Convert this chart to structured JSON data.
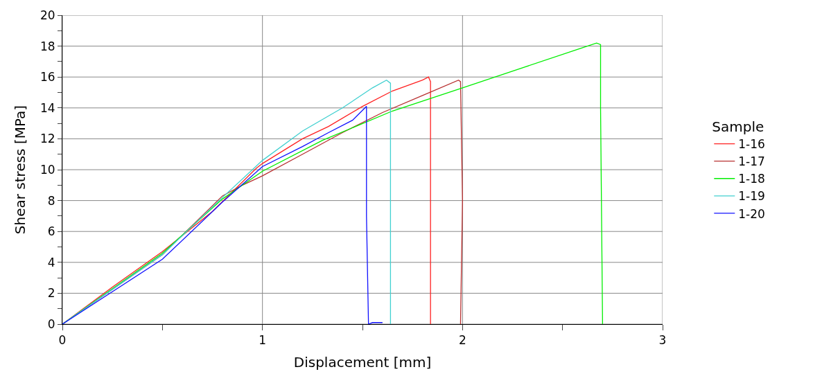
{
  "chart_data": {
    "type": "line",
    "xlabel": "Displacement [mm]",
    "ylabel": "Shear stress [MPa]",
    "legend_title": "Sample",
    "legend": "right",
    "grid": true,
    "marker": "none",
    "line_style": "solid",
    "xlim": [
      0,
      3
    ],
    "xticks": [
      0,
      {
        "value": 0.5,
        "label": null
      },
      1,
      {
        "value": 1.5,
        "label": null
      },
      2,
      {
        "value": 2.5,
        "label": null
      },
      3
    ],
    "ylim": [
      0,
      20
    ],
    "yticks": [
      0,
      {
        "value": 1,
        "label": null
      },
      2,
      {
        "value": 3,
        "label": null
      },
      4,
      {
        "value": 5,
        "label": null
      },
      6,
      {
        "value": 7,
        "label": null
      },
      8,
      {
        "value": 9,
        "label": null
      },
      10,
      {
        "value": 11,
        "label": null
      },
      12,
      {
        "value": 13,
        "label": null
      },
      14,
      {
        "value": 15,
        "label": null
      },
      16,
      {
        "value": 17,
        "label": null
      },
      18,
      {
        "value": 19,
        "label": null
      },
      20
    ],
    "series": [
      {
        "name": "1-16",
        "color": "#ff2020",
        "x": [
          0,
          0.25,
          0.5,
          0.75,
          0.97,
          1.0,
          1.2,
          1.33,
          1.5,
          1.65,
          1.8,
          1.83,
          1.84,
          1.84
        ],
        "values": [
          0,
          2.4,
          4.7,
          7.3,
          10.1,
          10.4,
          12.0,
          12.8,
          14.1,
          15.1,
          15.8,
          16.0,
          15.7,
          0
        ]
      },
      {
        "name": "1-17",
        "color": "#b83030",
        "x": [
          0,
          0.5,
          0.8,
          0.9,
          1.0,
          1.2,
          1.4,
          1.6,
          1.8,
          1.98,
          1.99,
          2.0,
          1.99
        ],
        "values": [
          0,
          4.5,
          8.3,
          9.0,
          9.6,
          11.0,
          12.4,
          13.7,
          14.8,
          15.8,
          15.7,
          8,
          0
        ]
      },
      {
        "name": "1-18",
        "color": "#00ee00",
        "x": [
          0,
          0.5,
          0.8,
          0.9,
          1.0,
          1.3,
          1.65,
          2.0,
          2.3,
          2.6,
          2.67,
          2.69,
          2.69,
          2.7
        ],
        "values": [
          0,
          4.6,
          8.1,
          9.0,
          9.9,
          11.9,
          13.8,
          15.3,
          16.6,
          17.9,
          18.2,
          18.1,
          14,
          0
        ]
      },
      {
        "name": "1-19",
        "color": "#40d0d0",
        "x": [
          0,
          0.5,
          0.8,
          1.0,
          1.2,
          1.4,
          1.55,
          1.62,
          1.64,
          1.64
        ],
        "values": [
          0,
          4.5,
          8.2,
          10.6,
          12.5,
          14.0,
          15.3,
          15.8,
          15.6,
          0
        ]
      },
      {
        "name": "1-20",
        "color": "#1010ff",
        "x": [
          0,
          0.5,
          0.8,
          1.0,
          1.2,
          1.33,
          1.45,
          1.52,
          1.52,
          1.53,
          1.55,
          1.6
        ],
        "values": [
          0,
          4.2,
          7.9,
          10.2,
          11.5,
          12.4,
          13.2,
          14.1,
          7,
          0,
          0.1,
          0.1
        ]
      }
    ]
  }
}
